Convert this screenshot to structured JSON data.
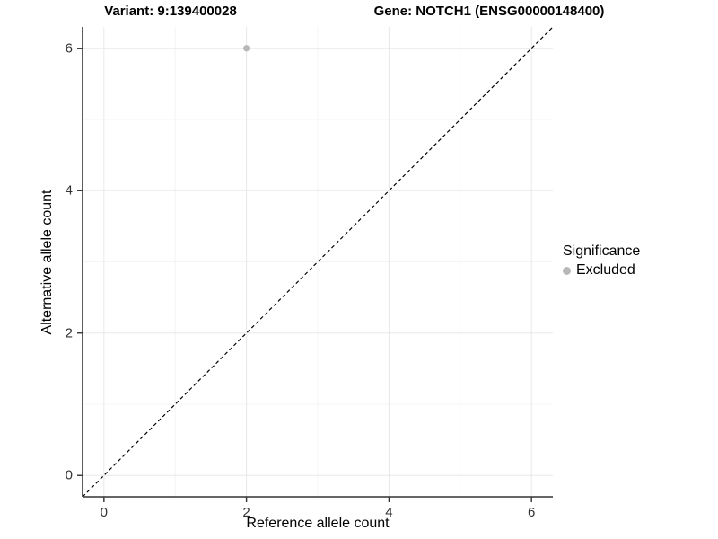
{
  "header": {
    "variant_title": "Variant: 9:139400028",
    "gene_title": "Gene: NOTCH1 (ENSG00000148400)"
  },
  "chart_data": {
    "type": "scatter",
    "xlabel": "Reference allele count",
    "ylabel": "Alternative allele count",
    "xlim": [
      -0.3,
      6.3
    ],
    "ylim": [
      -0.3,
      6.3
    ],
    "x_ticks": [
      0,
      2,
      4,
      6
    ],
    "y_ticks": [
      0,
      2,
      4,
      6
    ],
    "x_minor_ticks": [
      1,
      3,
      5
    ],
    "y_minor_ticks": [
      1,
      3,
      5
    ],
    "grid": "major+minor",
    "points": [
      {
        "x": 2,
        "y": 6,
        "series": "Excluded"
      }
    ],
    "reference_line": {
      "type": "identity",
      "equation": "y = x",
      "style": "dashed",
      "color": "#000000"
    },
    "legend": {
      "title": "Significance",
      "position": "right",
      "entries": [
        {
          "label": "Excluded",
          "color": "#b8b8b8"
        }
      ]
    },
    "colors": {
      "background": "#ffffff",
      "grid_major": "#e8e8e8",
      "grid_minor": "#f4f4f4",
      "axis_line": "#333333",
      "tick_mark": "#333333",
      "tick_text": "#333333",
      "point": "#b8b8b8"
    }
  }
}
